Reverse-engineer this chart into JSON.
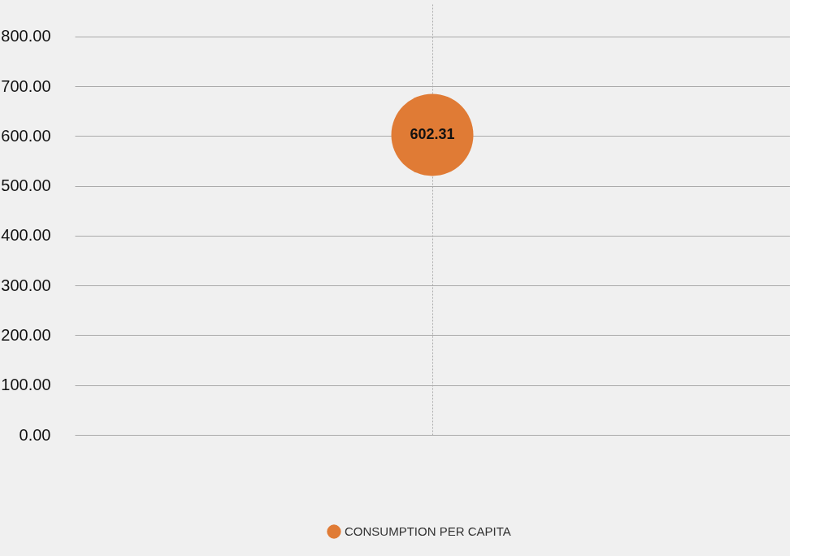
{
  "chart_data": {
    "type": "scatter",
    "categories": [
      null
    ],
    "series": [
      {
        "name": "CONSUMPTION PER CAPITA",
        "color": "#e07b35",
        "values": [
          602.31
        ]
      }
    ],
    "ylim": [
      0,
      865
    ],
    "yticks": [
      {
        "value": 0,
        "label": "0.00"
      },
      {
        "value": 100,
        "label": "100.00"
      },
      {
        "value": 200,
        "label": "200.00"
      },
      {
        "value": 300,
        "label": "300.00"
      },
      {
        "value": 400,
        "label": "400.00"
      },
      {
        "value": 500,
        "label": "500.00"
      },
      {
        "value": 600,
        "label": "600.00"
      },
      {
        "value": 700,
        "label": "700.00"
      },
      {
        "value": 800,
        "label": "800.00"
      }
    ],
    "marker": "circle",
    "data_labels": true,
    "grid": true,
    "legend": "bottom"
  }
}
